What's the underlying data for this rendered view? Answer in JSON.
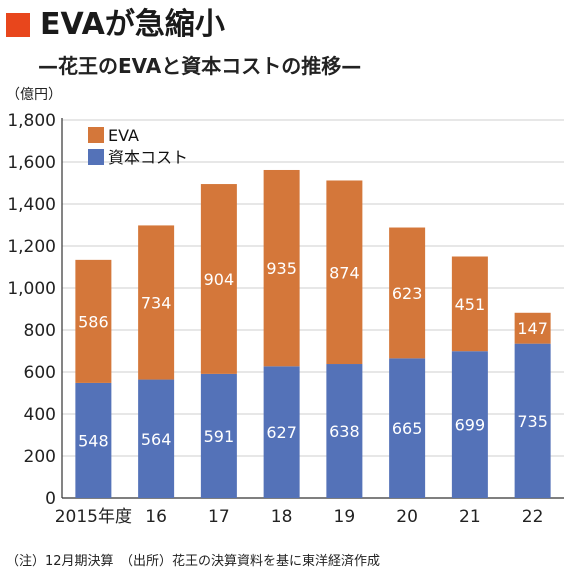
{
  "header": {
    "title": "EVAが急縮小",
    "subtitle": "—花王のEVAと資本コストの推移—",
    "unit": "（億円）",
    "note": "（注）12月期決算　（出所）花王の決算資料を基に東洋経済作成",
    "accent_color": "#e8461c"
  },
  "chart_data": {
    "type": "bar",
    "stacked": true,
    "categories": [
      "2015年度",
      "16",
      "17",
      "18",
      "19",
      "20",
      "21",
      "22"
    ],
    "series": [
      {
        "name": "資本コスト",
        "values": [
          548,
          564,
          591,
          627,
          638,
          665,
          699,
          735
        ],
        "color": "#5472b8"
      },
      {
        "name": "EVA",
        "values": [
          586,
          734,
          904,
          935,
          874,
          623,
          451,
          147
        ],
        "color": "#d4773a"
      }
    ],
    "ylim": [
      0,
      1800
    ],
    "yticks": [
      "0",
      "200",
      "400",
      "600",
      "800",
      "1,000",
      "1,200",
      "1,400",
      "1,600",
      "1,800"
    ],
    "ytick_values": [
      0,
      200,
      400,
      600,
      800,
      1000,
      1200,
      1400,
      1600,
      1800
    ],
    "grid": true,
    "legend_position": "top-left",
    "legend": [
      {
        "name": "EVA",
        "color": "#d4773a"
      },
      {
        "name": "資本コスト",
        "color": "#5472b8"
      }
    ]
  }
}
